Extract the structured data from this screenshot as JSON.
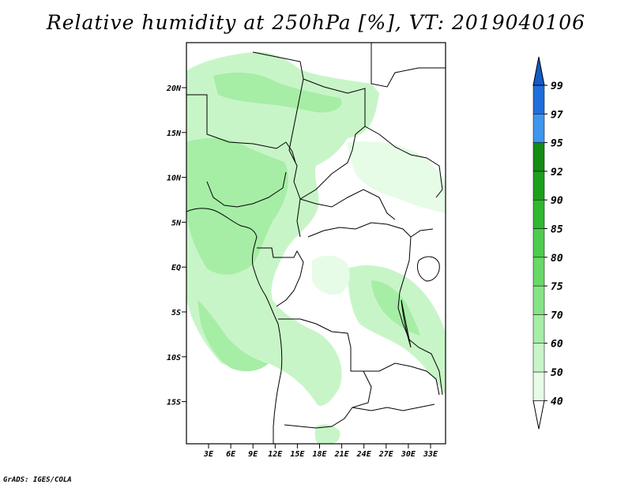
{
  "title": "Relative humidity at 250hPa [%], VT: 2019040106",
  "credit": "GrADS: IGES/COLA",
  "map": {
    "lat_labels": [
      "20N",
      "15N",
      "10N",
      "5N",
      "EQ",
      "5S",
      "10S",
      "15S"
    ],
    "lon_labels": [
      "3E",
      "6E",
      "9E",
      "12E",
      "15E",
      "18E",
      "21E",
      "24E",
      "27E",
      "30E",
      "33E"
    ],
    "lon_range": [
      0,
      35
    ],
    "lat_range": [
      -20,
      25
    ]
  },
  "colorbar": {
    "levels": [
      "40",
      "50",
      "60",
      "70",
      "75",
      "80",
      "85",
      "90",
      "92",
      "95",
      "97",
      "99"
    ],
    "colors": [
      "#ffffff",
      "#e6fce6",
      "#c8f5c8",
      "#a6eda6",
      "#86e486",
      "#66d966",
      "#4ccc4c",
      "#30b830",
      "#1ca01c",
      "#128c12",
      "#3c96ec",
      "#1e6edc",
      "#145ac8"
    ]
  }
}
